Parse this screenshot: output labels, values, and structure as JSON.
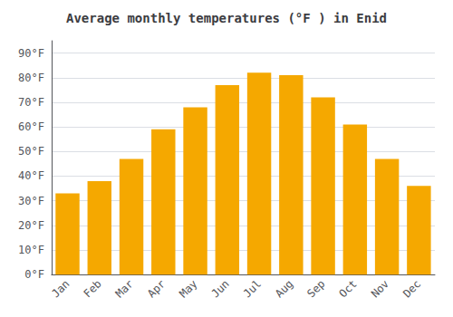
{
  "chart_data": {
    "type": "bar",
    "title": "Average monthly temperatures (°F ) in Enid",
    "categories": [
      "Jan",
      "Feb",
      "Mar",
      "Apr",
      "May",
      "Jun",
      "Jul",
      "Aug",
      "Sep",
      "Oct",
      "Nov",
      "Dec"
    ],
    "values": [
      33,
      38,
      47,
      59,
      68,
      77,
      82,
      81,
      72,
      61,
      47,
      36
    ],
    "color": "#F5A800",
    "ylim": [
      0,
      95
    ],
    "yticks": [
      {
        "value": 0,
        "label": "0°F"
      },
      {
        "value": 10,
        "label": "10°F"
      },
      {
        "value": 20,
        "label": "20°F"
      },
      {
        "value": 30,
        "label": "30°F"
      },
      {
        "value": 40,
        "label": "40°F"
      },
      {
        "value": 50,
        "label": "50°F"
      },
      {
        "value": 60,
        "label": "60°F"
      },
      {
        "value": 70,
        "label": "70°F"
      },
      {
        "value": 80,
        "label": "80°F"
      },
      {
        "value": 90,
        "label": "90°F"
      }
    ],
    "grid": true
  }
}
